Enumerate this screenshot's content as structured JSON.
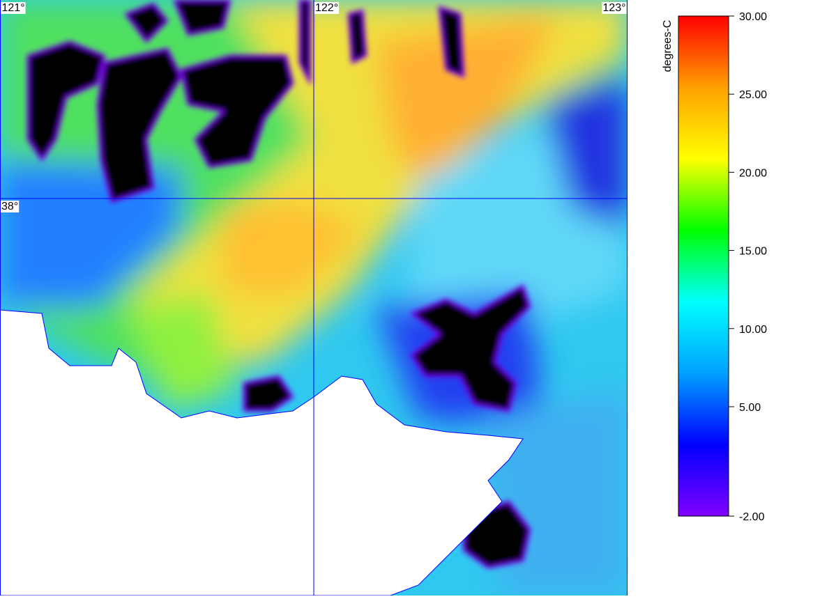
{
  "map": {
    "longitude_lines": [
      {
        "value": 121,
        "label": "121°"
      },
      {
        "value": 122,
        "label": "122°"
      },
      {
        "value": 123,
        "label": "123°"
      }
    ],
    "latitude_lines": [
      {
        "value": 38,
        "label": "38°"
      }
    ],
    "lonlim": [
      121,
      123
    ],
    "latlim": [
      37.0,
      38.5
    ]
  },
  "colorbar": {
    "label": "degrees-C",
    "lim": [
      -2,
      30
    ],
    "ticks": [
      {
        "value": 30,
        "label": "30.00"
      },
      {
        "value": 25,
        "label": "25.00"
      },
      {
        "value": 20,
        "label": "20.00"
      },
      {
        "value": 15,
        "label": "15.00"
      },
      {
        "value": 10,
        "label": "10.00"
      },
      {
        "value": 5,
        "label": "5.00"
      },
      {
        "value": -2,
        "label": "-2.00"
      }
    ],
    "colors": [
      "#8000ff",
      "#0000ff",
      "#00a0ff",
      "#00ffff",
      "#00ff00",
      "#ffff00",
      "#ffa000",
      "#ff0000"
    ]
  }
}
